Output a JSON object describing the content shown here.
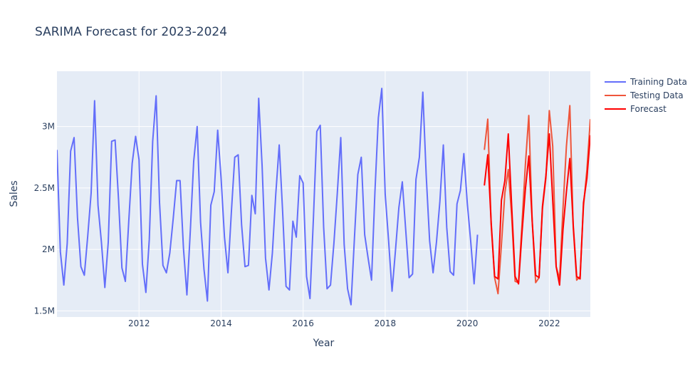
{
  "chart_data": {
    "type": "line",
    "title": "SARIMA Forecast for 2023-2024",
    "xlabel": "Year",
    "ylabel": "Sales",
    "x_unit": "year",
    "xlim": [
      2010.0,
      2023.0
    ],
    "ylim": [
      1450000,
      3450000
    ],
    "x_ticks": [
      {
        "value": 2012,
        "label": "2012"
      },
      {
        "value": 2014,
        "label": "2014"
      },
      {
        "value": 2016,
        "label": "2016"
      },
      {
        "value": 2018,
        "label": "2018"
      },
      {
        "value": 2020,
        "label": "2020"
      },
      {
        "value": 2022,
        "label": "2022"
      }
    ],
    "y_ticks": [
      {
        "value": 1500000,
        "label": "1.5M"
      },
      {
        "value": 2000000,
        "label": "2M"
      },
      {
        "value": 2500000,
        "label": "2.5M"
      },
      {
        "value": 3000000,
        "label": "3M"
      }
    ],
    "grid": true,
    "legend_position": "top-right",
    "series": [
      {
        "name": "Training Data",
        "color": "#636efa",
        "points": [
          [
            2010.0,
            2810000
          ],
          [
            2010.083,
            1980000
          ],
          [
            2010.167,
            1710000
          ],
          [
            2010.25,
            2050000
          ],
          [
            2010.333,
            2800000
          ],
          [
            2010.417,
            2910000
          ],
          [
            2010.5,
            2260000
          ],
          [
            2010.583,
            1860000
          ],
          [
            2010.667,
            1790000
          ],
          [
            2010.75,
            2110000
          ],
          [
            2010.833,
            2460000
          ],
          [
            2010.917,
            3210000
          ],
          [
            2011.0,
            2360000
          ],
          [
            2011.083,
            2060000
          ],
          [
            2011.167,
            1690000
          ],
          [
            2011.25,
            2060000
          ],
          [
            2011.333,
            2880000
          ],
          [
            2011.417,
            2890000
          ],
          [
            2011.5,
            2410000
          ],
          [
            2011.583,
            1850000
          ],
          [
            2011.667,
            1740000
          ],
          [
            2011.75,
            2230000
          ],
          [
            2011.833,
            2700000
          ],
          [
            2011.917,
            2920000
          ],
          [
            2012.0,
            2730000
          ],
          [
            2012.083,
            1880000
          ],
          [
            2012.167,
            1650000
          ],
          [
            2012.25,
            2080000
          ],
          [
            2012.333,
            2880000
          ],
          [
            2012.417,
            3250000
          ],
          [
            2012.5,
            2380000
          ],
          [
            2012.583,
            1870000
          ],
          [
            2012.667,
            1810000
          ],
          [
            2012.75,
            1970000
          ],
          [
            2012.833,
            2250000
          ],
          [
            2012.917,
            2560000
          ],
          [
            2013.0,
            2560000
          ],
          [
            2013.083,
            2010000
          ],
          [
            2013.167,
            1630000
          ],
          [
            2013.25,
            2150000
          ],
          [
            2013.333,
            2720000
          ],
          [
            2013.417,
            3000000
          ],
          [
            2013.5,
            2220000
          ],
          [
            2013.583,
            1840000
          ],
          [
            2013.667,
            1580000
          ],
          [
            2013.75,
            2360000
          ],
          [
            2013.833,
            2470000
          ],
          [
            2013.917,
            2970000
          ],
          [
            2014.0,
            2580000
          ],
          [
            2014.083,
            2100000
          ],
          [
            2014.167,
            1810000
          ],
          [
            2014.25,
            2300000
          ],
          [
            2014.333,
            2750000
          ],
          [
            2014.417,
            2770000
          ],
          [
            2014.5,
            2200000
          ],
          [
            2014.583,
            1860000
          ],
          [
            2014.667,
            1870000
          ],
          [
            2014.75,
            2440000
          ],
          [
            2014.833,
            2290000
          ],
          [
            2014.917,
            3230000
          ],
          [
            2015.0,
            2680000
          ],
          [
            2015.083,
            1930000
          ],
          [
            2015.167,
            1670000
          ],
          [
            2015.25,
            1970000
          ],
          [
            2015.333,
            2450000
          ],
          [
            2015.417,
            2850000
          ],
          [
            2015.5,
            2310000
          ],
          [
            2015.583,
            1700000
          ],
          [
            2015.667,
            1670000
          ],
          [
            2015.75,
            2230000
          ],
          [
            2015.833,
            2100000
          ],
          [
            2015.917,
            2600000
          ],
          [
            2016.0,
            2540000
          ],
          [
            2016.083,
            1780000
          ],
          [
            2016.167,
            1600000
          ],
          [
            2016.25,
            2250000
          ],
          [
            2016.333,
            2960000
          ],
          [
            2016.417,
            3010000
          ],
          [
            2016.5,
            2180000
          ],
          [
            2016.583,
            1680000
          ],
          [
            2016.667,
            1710000
          ],
          [
            2016.75,
            2050000
          ],
          [
            2016.833,
            2460000
          ],
          [
            2016.917,
            2910000
          ],
          [
            2017.0,
            2040000
          ],
          [
            2017.083,
            1680000
          ],
          [
            2017.167,
            1550000
          ],
          [
            2017.25,
            2090000
          ],
          [
            2017.333,
            2610000
          ],
          [
            2017.417,
            2750000
          ],
          [
            2017.5,
            2120000
          ],
          [
            2017.583,
            1930000
          ],
          [
            2017.667,
            1750000
          ],
          [
            2017.75,
            2470000
          ],
          [
            2017.833,
            3070000
          ],
          [
            2017.917,
            3310000
          ],
          [
            2018.0,
            2450000
          ],
          [
            2018.083,
            2070000
          ],
          [
            2018.167,
            1660000
          ],
          [
            2018.25,
            1990000
          ],
          [
            2018.333,
            2340000
          ],
          [
            2018.417,
            2550000
          ],
          [
            2018.5,
            2160000
          ],
          [
            2018.583,
            1770000
          ],
          [
            2018.667,
            1800000
          ],
          [
            2018.75,
            2570000
          ],
          [
            2018.833,
            2750000
          ],
          [
            2018.917,
            3280000
          ],
          [
            2019.0,
            2600000
          ],
          [
            2019.083,
            2070000
          ],
          [
            2019.167,
            1810000
          ],
          [
            2019.25,
            2060000
          ],
          [
            2019.333,
            2390000
          ],
          [
            2019.417,
            2850000
          ],
          [
            2019.5,
            2180000
          ],
          [
            2019.583,
            1820000
          ],
          [
            2019.667,
            1790000
          ],
          [
            2019.75,
            2370000
          ],
          [
            2019.833,
            2480000
          ],
          [
            2019.917,
            2780000
          ],
          [
            2020.0,
            2380000
          ],
          [
            2020.083,
            2070000
          ],
          [
            2020.167,
            1720000
          ],
          [
            2020.25,
            2120000
          ]
        ]
      },
      {
        "name": "Testing Data",
        "color": "#ef553b",
        "points": [
          [
            2020.417,
            2810000
          ],
          [
            2020.5,
            3060000
          ],
          [
            2020.583,
            2200000
          ],
          [
            2020.667,
            1770000
          ],
          [
            2020.75,
            1640000
          ],
          [
            2020.833,
            2040000
          ],
          [
            2020.917,
            2460000
          ],
          [
            2021.0,
            2650000
          ],
          [
            2021.083,
            2270000
          ],
          [
            2021.167,
            1740000
          ],
          [
            2021.25,
            1730000
          ],
          [
            2021.333,
            2200000
          ],
          [
            2021.417,
            2690000
          ],
          [
            2021.5,
            3090000
          ],
          [
            2021.583,
            2230000
          ],
          [
            2021.667,
            1730000
          ],
          [
            2021.75,
            1770000
          ],
          [
            2021.833,
            2330000
          ],
          [
            2021.917,
            2580000
          ],
          [
            2022.0,
            3130000
          ],
          [
            2022.083,
            2840000
          ],
          [
            2022.167,
            1860000
          ],
          [
            2022.25,
            1760000
          ],
          [
            2022.333,
            2330000
          ],
          [
            2022.417,
            2840000
          ],
          [
            2022.5,
            3170000
          ],
          [
            2022.583,
            2180000
          ],
          [
            2022.667,
            1750000
          ],
          [
            2022.75,
            1780000
          ],
          [
            2022.833,
            2350000
          ],
          [
            2022.917,
            2650000
          ],
          [
            2023.0,
            3060000
          ]
        ]
      },
      {
        "name": "Forecast",
        "color": "#ff0000",
        "points": [
          [
            2020.417,
            2520000
          ],
          [
            2020.5,
            2770000
          ],
          [
            2020.583,
            2220000
          ],
          [
            2020.667,
            1780000
          ],
          [
            2020.75,
            1760000
          ],
          [
            2020.833,
            2400000
          ],
          [
            2020.917,
            2560000
          ],
          [
            2021.0,
            2940000
          ],
          [
            2021.083,
            2350000
          ],
          [
            2021.167,
            1780000
          ],
          [
            2021.25,
            1720000
          ],
          [
            2021.333,
            2130000
          ],
          [
            2021.417,
            2490000
          ],
          [
            2021.5,
            2760000
          ],
          [
            2021.583,
            2230000
          ],
          [
            2021.667,
            1790000
          ],
          [
            2021.75,
            1770000
          ],
          [
            2021.833,
            2350000
          ],
          [
            2021.917,
            2600000
          ],
          [
            2022.0,
            2940000
          ],
          [
            2022.083,
            2400000
          ],
          [
            2022.167,
            1860000
          ],
          [
            2022.25,
            1710000
          ],
          [
            2022.333,
            2160000
          ],
          [
            2022.417,
            2470000
          ],
          [
            2022.5,
            2740000
          ],
          [
            2022.583,
            2200000
          ],
          [
            2022.667,
            1780000
          ],
          [
            2022.75,
            1760000
          ],
          [
            2022.833,
            2380000
          ],
          [
            2022.917,
            2580000
          ],
          [
            2023.0,
            2930000
          ]
        ]
      }
    ]
  },
  "colors": {
    "plot_background": "#e5ecf6",
    "grid": "#ffffff",
    "text": "#2a3f5f"
  }
}
